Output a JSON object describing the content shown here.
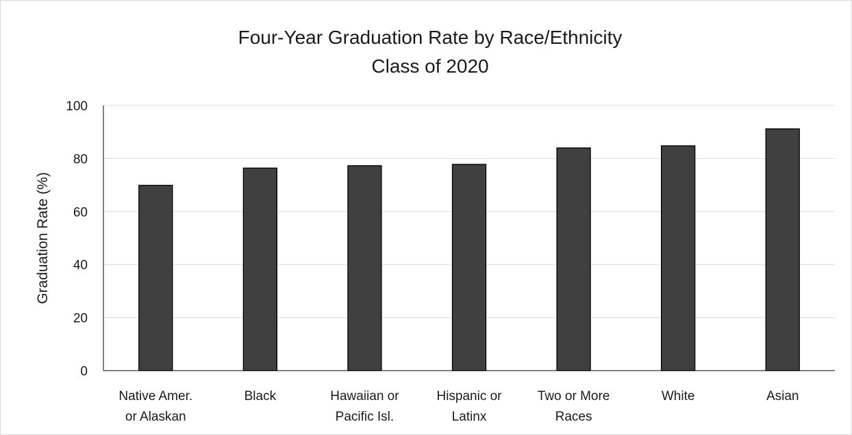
{
  "chart_data": {
    "type": "bar",
    "title_lines": [
      "Four-Year Graduation Rate by Race/Ethnicity",
      "Class of 2020"
    ],
    "ylabel": "Graduation Rate (%)",
    "xlabel": "",
    "ylim": [
      0,
      100
    ],
    "yticks": [
      0,
      20,
      40,
      60,
      80,
      100
    ],
    "grid": true,
    "legend": "none",
    "bar_color": "#404040",
    "categories": [
      [
        "Native Amer.",
        "or Alaskan"
      ],
      [
        "Black"
      ],
      [
        "Hawaiian or",
        "Pacific Isl."
      ],
      [
        "Hispanic or",
        "Latinx"
      ],
      [
        "Two or More",
        "Races"
      ],
      [
        "White"
      ],
      [
        "Asian"
      ]
    ],
    "values": [
      69.9,
      76.4,
      77.3,
      77.8,
      84.0,
      84.8,
      91.2
    ]
  }
}
